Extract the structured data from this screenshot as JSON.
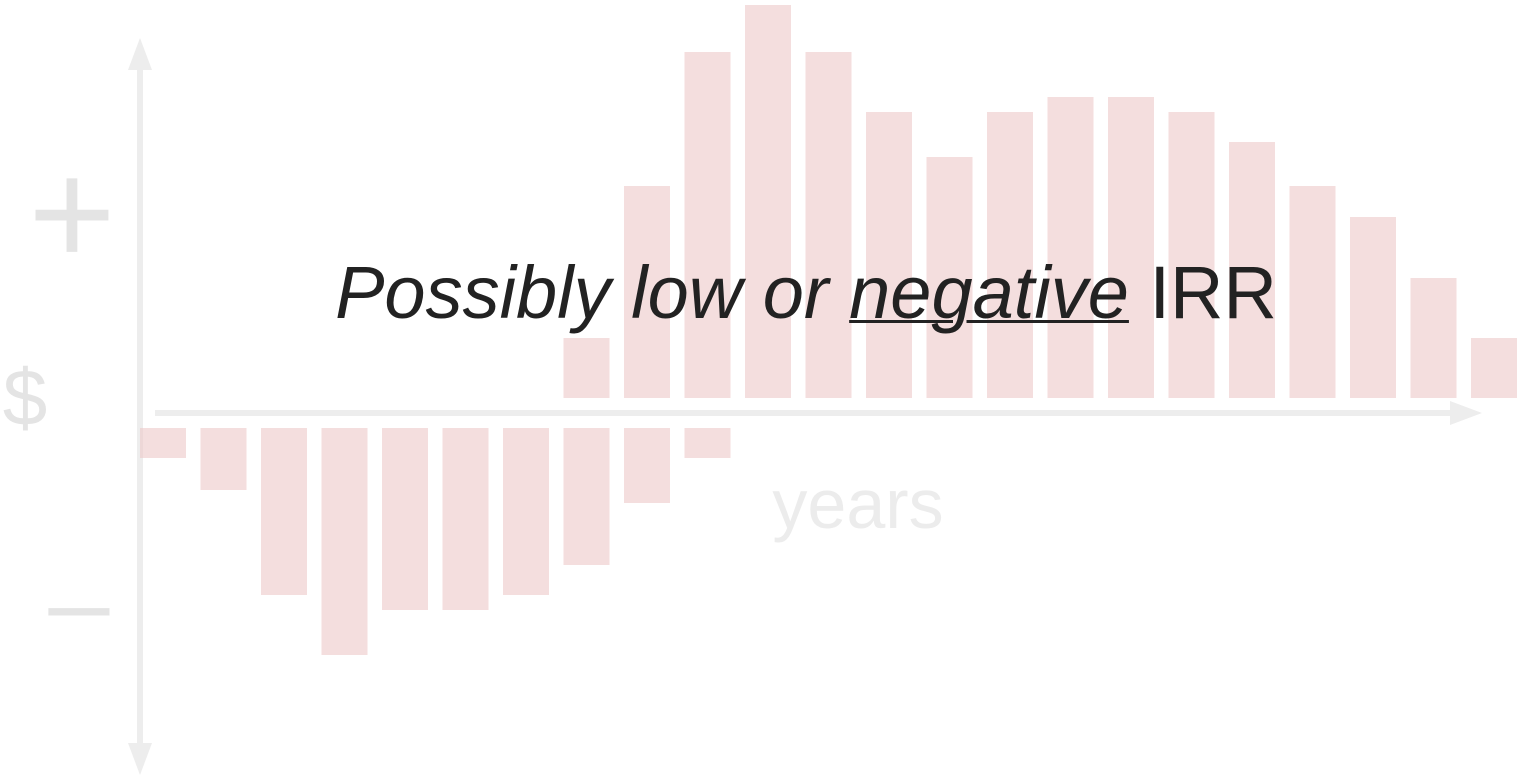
{
  "chart_data": {
    "type": "bar",
    "title_parts": [
      "Possibly low or",
      "negative",
      "IRR"
    ],
    "y_top_label": "+",
    "y_label": "$",
    "y_bottom_label": "–",
    "x_label": "years",
    "categories": [
      null,
      null,
      null,
      null,
      null,
      null,
      null,
      null,
      null,
      null,
      null,
      null,
      null,
      null,
      null,
      null,
      null,
      null,
      null,
      null,
      null,
      null,
      null
    ],
    "series": [
      {
        "color": "#ecc8c8",
        "values": [
          -30,
          -62,
          -167,
          -227,
          -182,
          -182,
          -167,
          -137,
          -75,
          -30,
          null,
          null,
          null,
          null,
          null,
          null,
          null,
          null,
          null,
          null,
          null,
          null,
          null
        ]
      },
      {
        "color": "#ecc8c8",
        "values": [
          null,
          null,
          null,
          null,
          null,
          null,
          null,
          60,
          212,
          346,
          393,
          346,
          286,
          241,
          286,
          301,
          301,
          286,
          256,
          212,
          181,
          120,
          60
        ]
      }
    ],
    "ylim": [
      -365,
      413
    ]
  }
}
